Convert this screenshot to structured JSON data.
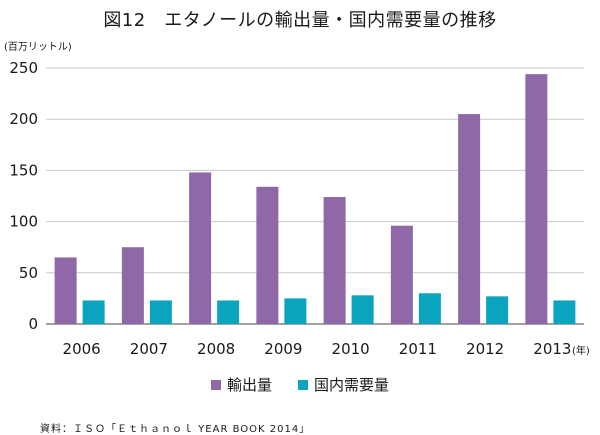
{
  "title": "図12　エタノールの輸出量・国内需要量の推移",
  "y_unit": "(百万リットル)",
  "x_unit": "(年)",
  "source": "資料：ＩＳＯ「Ｅｔｈａｎｏｌ YEAR BOOK 2014」",
  "colors": {
    "export": "#8f68a8",
    "domestic": "#0aa4bf",
    "grid": "#c9c9c9",
    "axis": "#444444"
  },
  "chart_data": {
    "type": "bar",
    "title": "図12　エタノールの輸出量・国内需要量の推移",
    "categories": [
      "2006",
      "2007",
      "2008",
      "2009",
      "2010",
      "2011",
      "2012",
      "2013"
    ],
    "series": [
      {
        "name": "輸出量",
        "values": [
          65,
          75,
          148,
          134,
          124,
          96,
          205,
          244
        ]
      },
      {
        "name": "国内需要量",
        "values": [
          23,
          23,
          23,
          25,
          28,
          30,
          27,
          23
        ]
      }
    ],
    "ylim": [
      0,
      250
    ],
    "yticks": [
      "0",
      "50",
      "100",
      "150",
      "200",
      "250"
    ],
    "grid": true,
    "legend": "bottom"
  }
}
